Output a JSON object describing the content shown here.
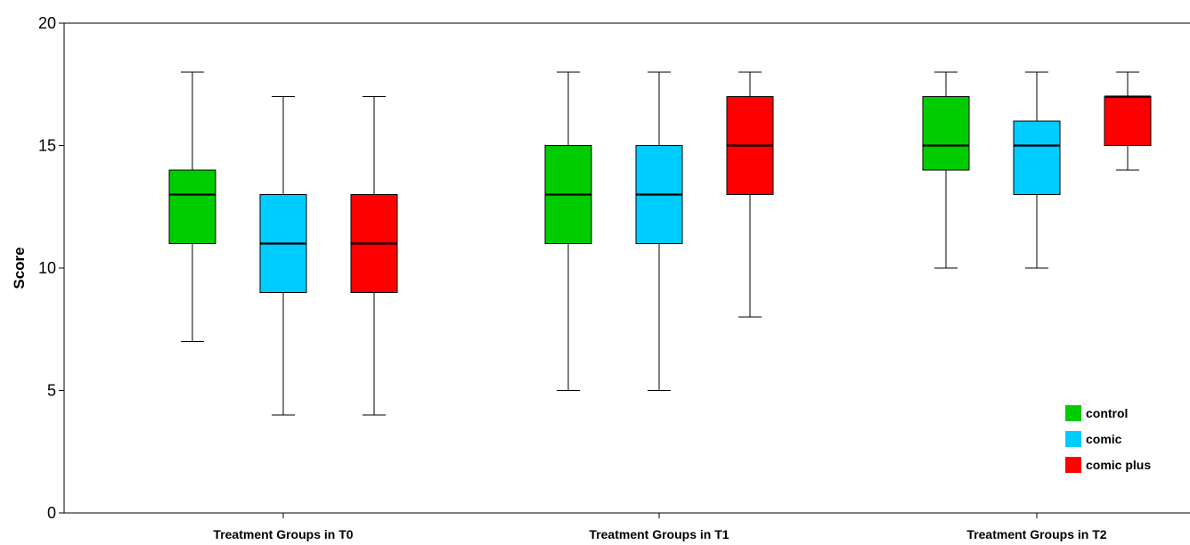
{
  "chart_data": {
    "type": "boxplot",
    "ylabel": "Score",
    "ylim": [
      0,
      20
    ],
    "yticks": [
      0,
      5,
      10,
      15,
      20
    ],
    "grid": false,
    "legend_position": "bottom-right",
    "categories": [
      "Treatment Groups in T0",
      "Treatment Groups in T1",
      "Treatment Groups in T2"
    ],
    "series": [
      {
        "name": "control",
        "color": "#00cc00",
        "boxes": [
          {
            "min": 7,
            "q1": 11,
            "median": 13,
            "q3": 14,
            "max": 18
          },
          {
            "min": 5,
            "q1": 11,
            "median": 13,
            "q3": 15,
            "max": 18
          },
          {
            "min": 10,
            "q1": 14,
            "median": 15,
            "q3": 17,
            "max": 18
          }
        ]
      },
      {
        "name": "comic",
        "color": "#00ccff",
        "boxes": [
          {
            "min": 4,
            "q1": 9,
            "median": 11,
            "q3": 13,
            "max": 17
          },
          {
            "min": 5,
            "q1": 11,
            "median": 13,
            "q3": 15,
            "max": 18
          },
          {
            "min": 10,
            "q1": 13,
            "median": 15,
            "q3": 16,
            "max": 18
          }
        ]
      },
      {
        "name": "comic plus",
        "color": "#ff0000",
        "boxes": [
          {
            "min": 4,
            "q1": 9,
            "median": 11,
            "q3": 13,
            "max": 17
          },
          {
            "min": 8,
            "q1": 13,
            "median": 15,
            "q3": 17,
            "max": 18
          },
          {
            "min": 14,
            "q1": 15,
            "median": 17,
            "q3": 17,
            "max": 18
          }
        ]
      }
    ]
  }
}
